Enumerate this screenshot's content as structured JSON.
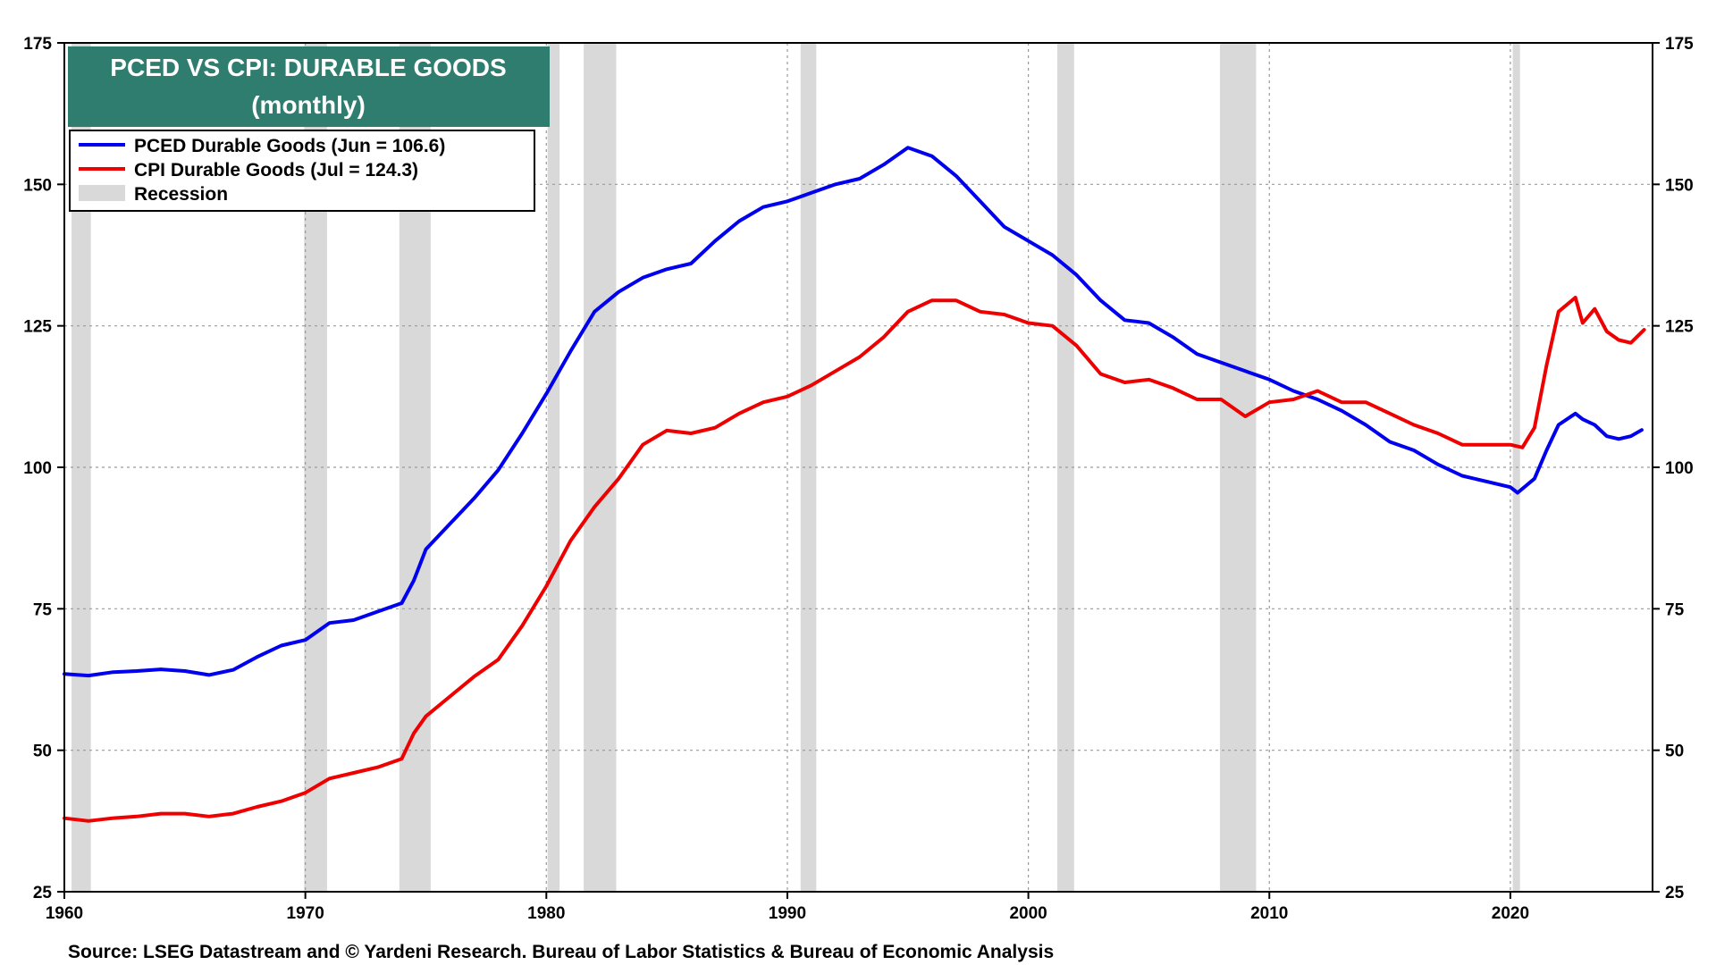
{
  "chart_data": {
    "type": "line",
    "title": "PCED VS CPI: DURABLE GOODS",
    "subtitle": "(monthly)",
    "source": "Source: LSEG Datastream and © Yardeni Research. Bureau of Labor Statistics & Bureau of Economic Analysis",
    "xlim": [
      1960,
      2025.9
    ],
    "ylim": [
      25,
      175
    ],
    "x_ticks": [
      "1960",
      "1970",
      "1980",
      "1990",
      "2000",
      "2010",
      "2020"
    ],
    "x_tick_values": [
      1960,
      1970,
      1980,
      1990,
      2000,
      2010,
      2020
    ],
    "y_ticks": [
      "25",
      "50",
      "75",
      "100",
      "125",
      "150",
      "175"
    ],
    "y_tick_values": [
      25,
      50,
      75,
      100,
      125,
      150,
      175
    ],
    "grid": true,
    "legend_position": "top-left",
    "legend": [
      {
        "label": "PCED Durable Goods (Jun = 106.6)",
        "color": "#0000ee"
      },
      {
        "label": "CPI Durable Goods (Jul = 124.3)",
        "color": "#ee0000"
      },
      {
        "label": "Recession",
        "color": "#d9d9d9"
      }
    ],
    "recessions": [
      [
        1960.3,
        1961.1
      ],
      [
        1969.95,
        1970.9
      ],
      [
        1973.9,
        1975.2
      ],
      [
        1980.05,
        1980.55
      ],
      [
        1981.55,
        1982.9
      ],
      [
        1990.55,
        1991.2
      ],
      [
        2001.2,
        2001.9
      ],
      [
        2007.95,
        2009.45
      ],
      [
        2020.1,
        2020.4
      ]
    ],
    "series": [
      {
        "name": "PCED Durable Goods",
        "color": "#0000ee",
        "x": [
          1960,
          1961,
          1962,
          1963,
          1964,
          1965,
          1966,
          1967,
          1968,
          1969,
          1970,
          1971,
          1972,
          1973,
          1974,
          1974.5,
          1975,
          1976,
          1977,
          1978,
          1979,
          1980,
          1981,
          1982,
          1983,
          1984,
          1985,
          1986,
          1987,
          1988,
          1989,
          1990,
          1991,
          1992,
          1993,
          1994,
          1995,
          1996,
          1997,
          1998,
          1999,
          2000,
          2001,
          2002,
          2003,
          2004,
          2005,
          2006,
          2007,
          2008,
          2009,
          2010,
          2011,
          2012,
          2013,
          2014,
          2015,
          2016,
          2017,
          2018,
          2019,
          2020,
          2020.3,
          2021,
          2021.5,
          2022,
          2022.7,
          2023,
          2023.5,
          2024,
          2024.5,
          2025,
          2025.45
        ],
        "values": [
          63.5,
          63.2,
          63.8,
          64.0,
          64.3,
          64.0,
          63.3,
          64.2,
          66.5,
          68.5,
          69.5,
          72.5,
          73.0,
          74.5,
          76.0,
          80.0,
          85.5,
          90.0,
          94.5,
          99.5,
          106.0,
          113.0,
          120.5,
          127.5,
          131.0,
          133.5,
          135.0,
          136.0,
          140.0,
          143.5,
          146.0,
          147.0,
          148.5,
          150.0,
          151.0,
          153.5,
          156.5,
          155.0,
          151.5,
          147.0,
          142.5,
          140.0,
          137.5,
          134.0,
          129.5,
          126.0,
          125.5,
          123.0,
          120.0,
          118.5,
          117.0,
          115.5,
          113.5,
          112.0,
          110.0,
          107.5,
          104.5,
          103.0,
          100.5,
          98.5,
          97.5,
          96.5,
          95.5,
          98.0,
          103.0,
          107.5,
          109.5,
          108.5,
          107.5,
          105.5,
          105.0,
          105.5,
          106.6
        ]
      },
      {
        "name": "CPI Durable Goods",
        "color": "#ee0000",
        "x": [
          1960,
          1961,
          1962,
          1963,
          1964,
          1965,
          1966,
          1967,
          1968,
          1969,
          1970,
          1971,
          1972,
          1973,
          1974,
          1974.5,
          1975,
          1976,
          1977,
          1978,
          1979,
          1980,
          1981,
          1982,
          1983,
          1984,
          1985,
          1986,
          1987,
          1988,
          1989,
          1990,
          1991,
          1992,
          1993,
          1994,
          1995,
          1996,
          1997,
          1998,
          1999,
          2000,
          2001,
          2002,
          2003,
          2004,
          2005,
          2006,
          2007,
          2008,
          2009,
          2010,
          2011,
          2012,
          2013,
          2014,
          2015,
          2016,
          2017,
          2018,
          2019,
          2020,
          2020.5,
          2021,
          2021.5,
          2022,
          2022.7,
          2023,
          2023.5,
          2024,
          2024.5,
          2025,
          2025.55
        ],
        "values": [
          38.0,
          37.5,
          38.0,
          38.3,
          38.8,
          38.8,
          38.3,
          38.8,
          40.0,
          41.0,
          42.5,
          45.0,
          46.0,
          47.0,
          48.5,
          53.0,
          56.0,
          59.5,
          63.0,
          66.0,
          72.0,
          79.0,
          87.0,
          93.0,
          98.0,
          104.0,
          106.5,
          106.0,
          107.0,
          109.5,
          111.5,
          112.5,
          114.5,
          117.0,
          119.5,
          123.0,
          127.5,
          129.5,
          129.5,
          127.5,
          127.0,
          125.5,
          125.0,
          121.5,
          116.5,
          115.0,
          115.5,
          114.0,
          112.0,
          112.0,
          109.0,
          111.5,
          112.0,
          113.5,
          111.5,
          111.5,
          109.5,
          107.5,
          106.0,
          104.0,
          104.0,
          104.0,
          103.5,
          107.0,
          118.0,
          127.5,
          130.0,
          125.5,
          128.0,
          124.0,
          122.5,
          122.0,
          124.3
        ]
      }
    ]
  }
}
